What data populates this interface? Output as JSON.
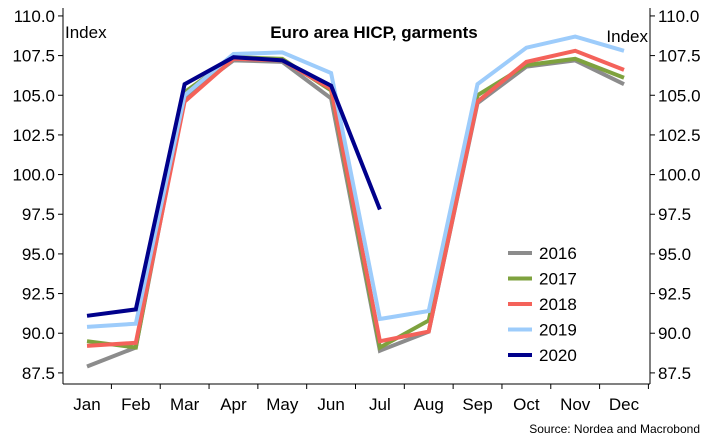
{
  "chart_data": {
    "type": "line",
    "title": "Euro area HICP, garments",
    "ylabel_left": "Index",
    "ylabel_right": "Index",
    "source": "Source: Nordea and Macrobond",
    "categories": [
      "Jan",
      "Feb",
      "Mar",
      "Apr",
      "May",
      "Jun",
      "Jul",
      "Aug",
      "Sep",
      "Oct",
      "Nov",
      "Dec"
    ],
    "ylim": [
      86.8,
      110.5
    ],
    "yticks": [
      87.5,
      90.0,
      92.5,
      95.0,
      97.5,
      100.0,
      102.5,
      105.0,
      107.5,
      110.0
    ],
    "ytick_labels": [
      "87.5",
      "90.0",
      "92.5",
      "95.0",
      "97.5",
      "100.0",
      "102.5",
      "105.0",
      "107.5",
      "110.0"
    ],
    "grid": false,
    "legend_position": "bottom-right",
    "series": [
      {
        "name": "2016",
        "color": "#8c8c8c",
        "values": [
          87.9,
          89.1,
          104.9,
          107.2,
          107.1,
          104.8,
          88.9,
          90.1,
          104.5,
          106.8,
          107.2,
          105.7
        ]
      },
      {
        "name": "2017",
        "color": "#7ea23e",
        "values": [
          89.5,
          89.1,
          105.2,
          107.4,
          107.3,
          105.3,
          89.1,
          90.8,
          105.0,
          106.9,
          107.3,
          106.1
        ]
      },
      {
        "name": "2018",
        "color": "#f4625a",
        "values": [
          89.2,
          89.4,
          104.6,
          107.3,
          107.2,
          105.4,
          89.5,
          90.1,
          104.6,
          107.1,
          107.8,
          106.6
        ]
      },
      {
        "name": "2019",
        "color": "#9dccfb",
        "values": [
          90.4,
          90.6,
          105.0,
          107.6,
          107.7,
          106.4,
          90.9,
          91.4,
          105.7,
          108.0,
          108.7,
          107.8
        ]
      },
      {
        "name": "2020",
        "color": "#00008b",
        "values": [
          91.1,
          91.5,
          105.7,
          107.4,
          107.2,
          105.6,
          97.8,
          null,
          null,
          null,
          null,
          null
        ]
      }
    ]
  }
}
